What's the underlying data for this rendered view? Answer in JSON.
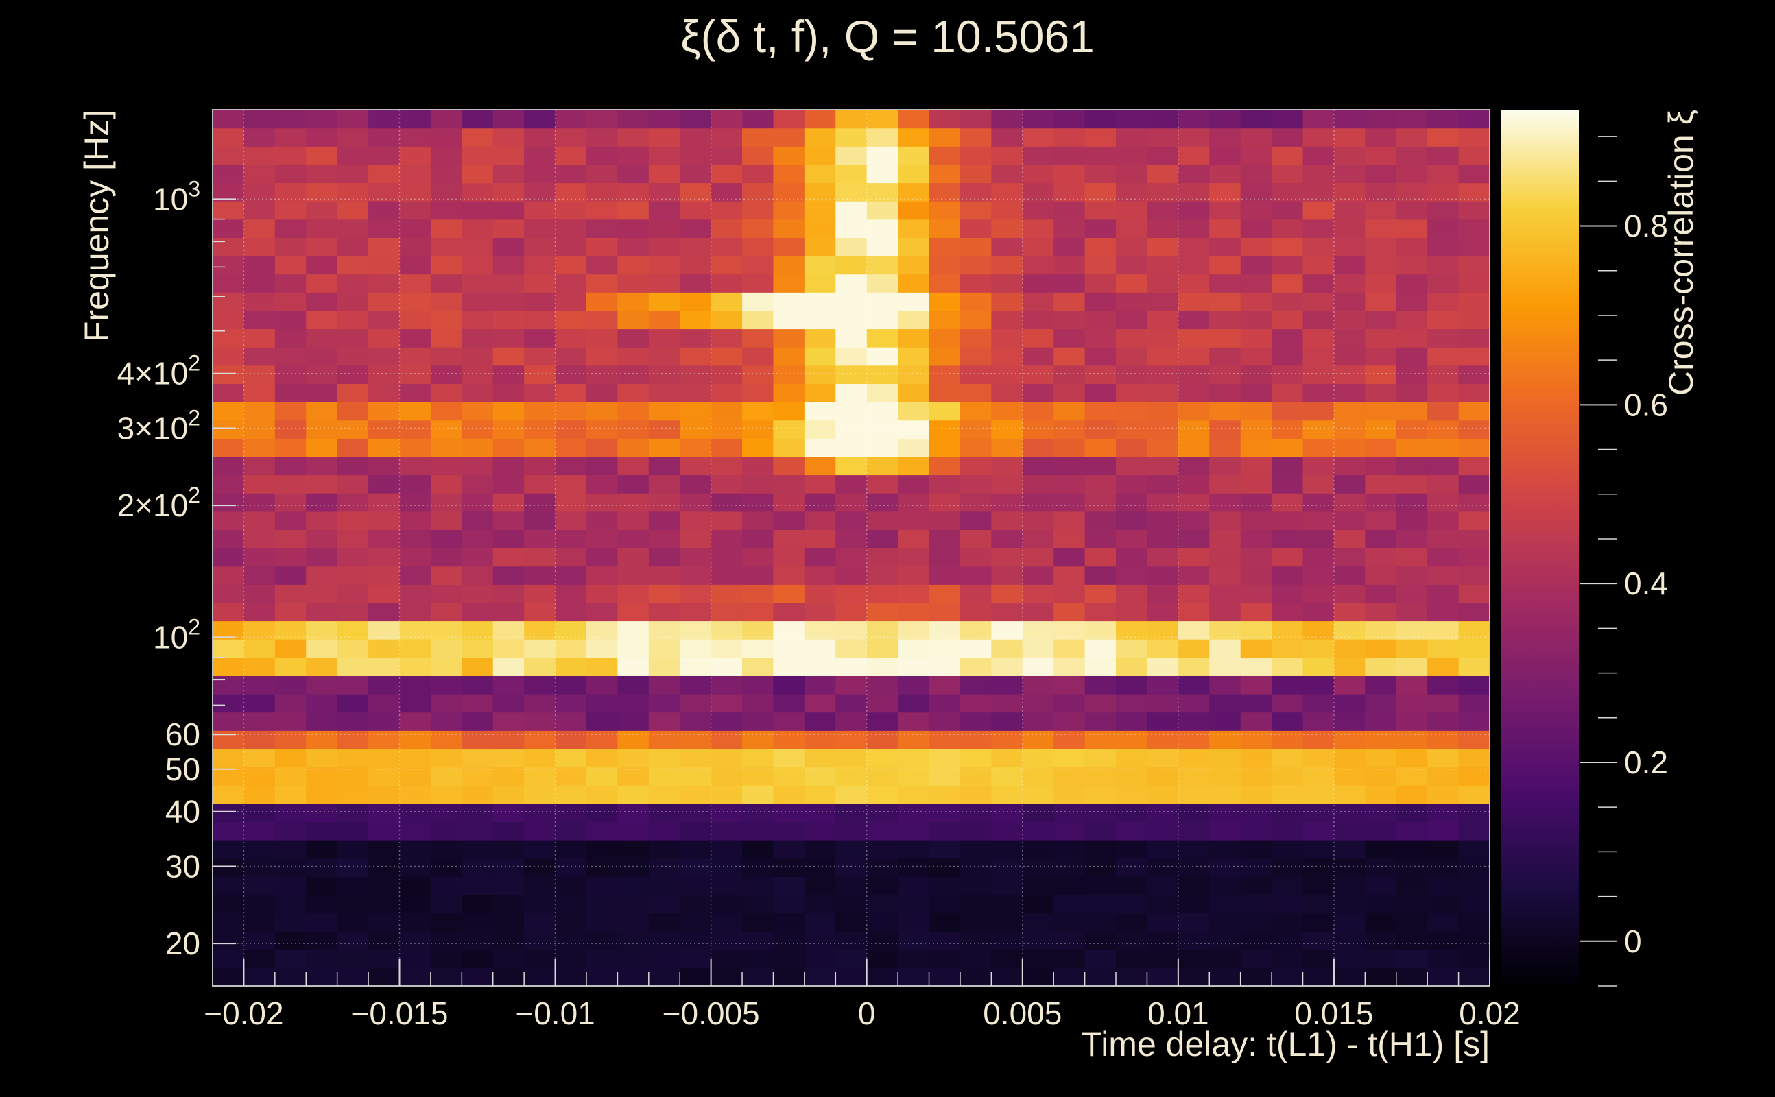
{
  "chart_data": {
    "type": "heatmap",
    "title": "ξ(δ t, f), Q = 10.5061",
    "xlabel": "Time delay: t(L1) - t(H1) [s]",
    "ylabel": "Frequency [Hz]",
    "zlabel": "Cross-correlation ξ",
    "xlim": [
      -0.021,
      0.02
    ],
    "ylim": [
      16,
      1600
    ],
    "zlim": [
      -0.05,
      0.93
    ],
    "y_scale": "log",
    "grid": true,
    "x_ticks": [
      {
        "value": -0.02,
        "label": "−0.02"
      },
      {
        "value": -0.015,
        "label": "−0.015"
      },
      {
        "value": -0.01,
        "label": "−0.01"
      },
      {
        "value": -0.005,
        "label": "−0.005"
      },
      {
        "value": 0,
        "label": "0"
      },
      {
        "value": 0.005,
        "label": "0.005"
      },
      {
        "value": 0.01,
        "label": "0.01"
      },
      {
        "value": 0.015,
        "label": "0.015"
      },
      {
        "value": 0.02,
        "label": "0.02"
      }
    ],
    "y_ticks": [
      {
        "value": 20,
        "label": "20"
      },
      {
        "value": 30,
        "label": "30"
      },
      {
        "value": 40,
        "label": "40"
      },
      {
        "value": 50,
        "label": "50"
      },
      {
        "value": 60,
        "label": "60"
      },
      {
        "value": 100,
        "base": "10",
        "exp": "2"
      },
      {
        "value": 200,
        "base": "2×10",
        "exp": "2"
      },
      {
        "value": 300,
        "base": "3×10",
        "exp": "2"
      },
      {
        "value": 400,
        "base": "4×10",
        "exp": "2"
      },
      {
        "value": 1000,
        "base": "10",
        "exp": "3"
      }
    ],
    "z_ticks": [
      {
        "value": 0,
        "label": "0"
      },
      {
        "value": 0.2,
        "label": "0.2"
      },
      {
        "value": 0.4,
        "label": "0.4"
      },
      {
        "value": 0.6,
        "label": "0.6"
      },
      {
        "value": 0.8,
        "label": "0.8"
      }
    ],
    "x_bins": 41,
    "y_bins": 48,
    "features": {
      "ridge_time": 0.0,
      "band_rows": [
        {
          "freq_range": [
            16,
            36
          ],
          "level": 0.02
        },
        {
          "freq_range": [
            36,
            41
          ],
          "level": 0.14
        },
        {
          "freq_range": [
            41,
            55
          ],
          "level": 0.82
        },
        {
          "freq_range": [
            55,
            62
          ],
          "level": 0.62
        },
        {
          "freq_range": [
            62,
            80
          ],
          "level": 0.28
        },
        {
          "freq_range": [
            80,
            112
          ],
          "level": 0.8
        },
        {
          "freq_range": [
            112,
            250
          ],
          "level": 0.4
        },
        {
          "freq_range": [
            250,
            330
          ],
          "level": 0.62
        },
        {
          "freq_range": [
            330,
            1500
          ],
          "level": 0.45
        },
        {
          "freq_range": [
            1500,
            1600
          ],
          "level": 0.3
        }
      ],
      "peak_value": 0.92,
      "colormap": [
        "#000004",
        "#1b0c41",
        "#4a0c6b",
        "#781c6d",
        "#a52c60",
        "#cf4446",
        "#ed6925",
        "#fb9b06",
        "#f7d13d",
        "#fcfdf0"
      ]
    }
  }
}
